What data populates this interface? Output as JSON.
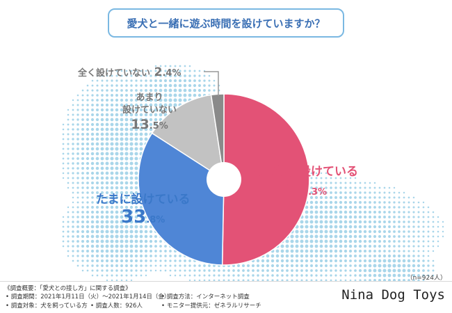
{
  "title": "愛犬と一緒に遊ぶ時間を設けていますか？",
  "chart_data": {
    "type": "pie",
    "title": "愛犬と一緒に遊ぶ時間を設けていますか？",
    "slices": [
      {
        "label": "ほぼ毎日設けている",
        "value": 50.3,
        "int": "50",
        "dec": ".3%",
        "color": "#e35276"
      },
      {
        "label": "たまに設けている",
        "value": 33.8,
        "int": "33",
        "dec": ".8%",
        "color": "#4f86d6"
      },
      {
        "label_line1": "あまり",
        "label_line2": "設けていない",
        "label": "あまり設けていない",
        "value": 13.5,
        "int": "13",
        "dec": ".5%",
        "color": "#c2c2c2"
      },
      {
        "label": "全く設けていない",
        "value": 2.4,
        "int": "2",
        "dec": ".4%",
        "color": "#8a8a8a"
      }
    ],
    "sample_size": "（n=924人）"
  },
  "colors": {
    "accent_blue": "#7ab8e2",
    "title_text": "#3a6fb4",
    "dog_dots": "#a9d6ea"
  },
  "footer": {
    "heading": "《調査概要：「愛犬との接し方」に関する調査》",
    "period": "• 調査期間：2021年1月11日（火）〜2021年1月14日（金）",
    "method": "• 調査方法：インターネット調査",
    "target": "• 調査対象：犬を飼っている方",
    "count": "• 調査人数：926人",
    "provider": "• モニター提供元：ゼネラルリサーチ"
  },
  "brand": "Nina Dog Toys"
}
